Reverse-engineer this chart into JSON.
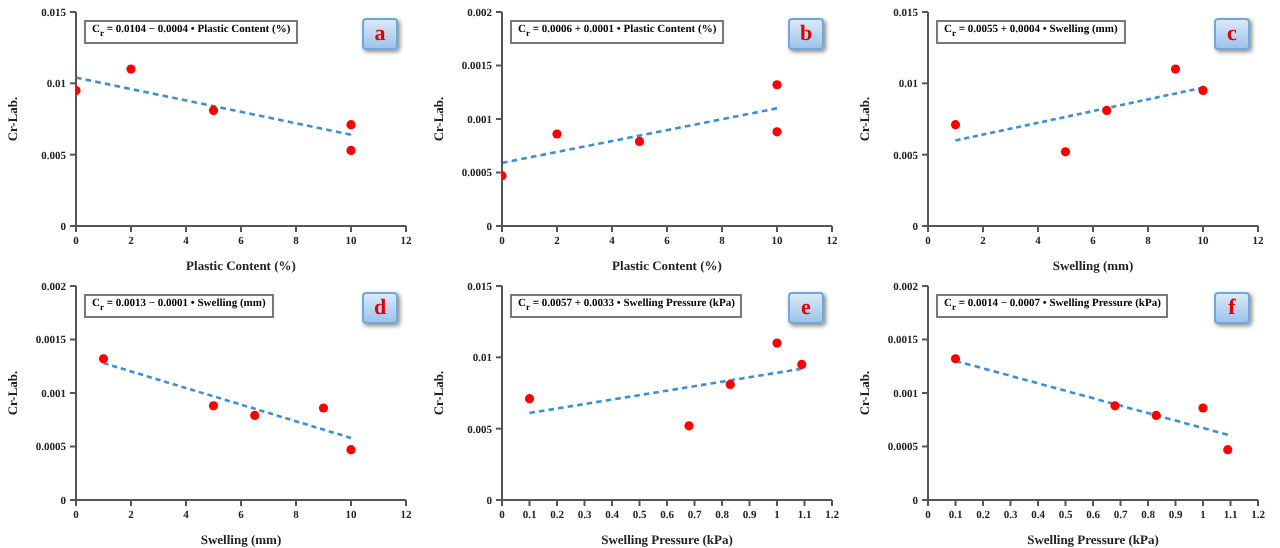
{
  "chart_data": [
    {
      "type": "scatter",
      "xlabel": "Plastic Content (%)",
      "ylabel": "Cr-Lab.",
      "annotations": [
        "C$_{r}$ = 0.0104 − 0.0004 • Plastic Content (%)",
        "a"
      ],
      "grid": false,
      "xlim": [
        0,
        12
      ],
      "xticks": [
        0,
        2,
        4,
        6,
        8,
        10,
        12
      ],
      "ylim": [
        0,
        0.015
      ],
      "yticks": [
        0,
        0.005,
        0.01,
        0.015
      ],
      "series": [
        {
          "color": "#ff0000",
          "marker": "circle",
          "x": [
            0,
            2,
            5,
            10,
            10
          ],
          "values": [
            0.0095,
            0.011,
            0.0081,
            0.0071,
            0.0053
          ]
        },
        {
          "type": "line",
          "color": "#3b8fd6",
          "marker": "none",
          "line_style": "dashed",
          "x": [
            0,
            10
          ],
          "values": [
            0.0104,
            0.0064
          ]
        }
      ]
    },
    {
      "type": "scatter",
      "xlabel": "Plastic Content (%)",
      "ylabel": "Cr-Lab.",
      "annotations": [
        "C$_{r}$ = 0.0006 + 0.0001 • Plastic Content (%)",
        "b"
      ],
      "grid": false,
      "xlim": [
        0,
        12
      ],
      "xticks": [
        0,
        2,
        4,
        6,
        8,
        10,
        12
      ],
      "ylim": [
        0,
        0.002
      ],
      "yticks": [
        0,
        0.0005,
        0.001,
        0.0015,
        0.002
      ],
      "series": [
        {
          "color": "#ff0000",
          "marker": "circle",
          "x": [
            0,
            2,
            5,
            10,
            10
          ],
          "values": [
            0.00047,
            0.00086,
            0.00079,
            0.00132,
            0.00088
          ]
        },
        {
          "type": "line",
          "color": "#3b8fd6",
          "marker": "none",
          "line_style": "dashed",
          "x": [
            0,
            10
          ],
          "values": [
            0.00059,
            0.0011
          ]
        }
      ]
    },
    {
      "type": "scatter",
      "xlabel": "Swelling (mm)",
      "ylabel": "Cr-Lab.",
      "annotations": [
        "C$_{r}$ = 0.0055 + 0.0004 • Swelling (mm)",
        "c"
      ],
      "grid": false,
      "xlim": [
        0,
        12
      ],
      "xticks": [
        0,
        2,
        4,
        6,
        8,
        10,
        12
      ],
      "ylim": [
        0,
        0.015
      ],
      "yticks": [
        0,
        0.005,
        0.01,
        0.015
      ],
      "series": [
        {
          "color": "#ff0000",
          "marker": "circle",
          "x": [
            1,
            5,
            6.5,
            9,
            10
          ],
          "values": [
            0.0071,
            0.0052,
            0.0081,
            0.011,
            0.0095
          ]
        },
        {
          "type": "line",
          "color": "#3b8fd6",
          "marker": "none",
          "line_style": "dashed",
          "x": [
            1,
            10
          ],
          "values": [
            0.006,
            0.0097
          ]
        }
      ]
    },
    {
      "type": "scatter",
      "xlabel": "Swelling (mm)",
      "ylabel": "Cr-Lab.",
      "annotations": [
        "C$_{r}$ = 0.0013 − 0.0001 • Swelling (mm)",
        "d"
      ],
      "grid": false,
      "xlim": [
        0,
        12
      ],
      "xticks": [
        0,
        2,
        4,
        6,
        8,
        10,
        12
      ],
      "ylim": [
        0,
        0.002
      ],
      "yticks": [
        0,
        0.0005,
        0.001,
        0.0015,
        0.002
      ],
      "series": [
        {
          "color": "#ff0000",
          "marker": "circle",
          "x": [
            1,
            5,
            6.5,
            9,
            10
          ],
          "values": [
            0.00132,
            0.00088,
            0.00079,
            0.00086,
            0.00047
          ]
        },
        {
          "type": "line",
          "color": "#3b8fd6",
          "marker": "none",
          "line_style": "dashed",
          "x": [
            1,
            10
          ],
          "values": [
            0.00128,
            0.00058
          ]
        }
      ]
    },
    {
      "type": "scatter",
      "xlabel": "Swelling Pressure (kPa)",
      "ylabel": "Cr-Lab.",
      "annotations": [
        "C$_{r}$ = 0.0057 + 0.0033 • Swelling Pressure (kPa)",
        "e"
      ],
      "grid": false,
      "xlim": [
        0,
        1.2
      ],
      "xticks": [
        0,
        0.1,
        0.2,
        0.3,
        0.4,
        0.5,
        0.6,
        0.7,
        0.8,
        0.9,
        1,
        1.1,
        1.2
      ],
      "ylim": [
        0,
        0.015
      ],
      "yticks": [
        0,
        0.005,
        0.01,
        0.015
      ],
      "series": [
        {
          "color": "#ff0000",
          "marker": "circle",
          "x": [
            0.1,
            0.68,
            0.83,
            1.0,
            1.09
          ],
          "values": [
            0.0071,
            0.0052,
            0.0081,
            0.011,
            0.0095
          ]
        },
        {
          "type": "line",
          "color": "#3b8fd6",
          "marker": "none",
          "line_style": "dashed",
          "x": [
            0.1,
            1.09
          ],
          "values": [
            0.0061,
            0.0092
          ]
        }
      ]
    },
    {
      "type": "scatter",
      "xlabel": "Swelling Pressure (kPa)",
      "ylabel": "Cr-Lab.",
      "annotations": [
        "C$_{r}$ = 0.0014 − 0.0007 • Swelling Pressure (kPa)",
        "f"
      ],
      "grid": false,
      "xlim": [
        0,
        1.2
      ],
      "xticks": [
        0,
        0.1,
        0.2,
        0.3,
        0.4,
        0.5,
        0.6,
        0.7,
        0.8,
        0.9,
        1,
        1.1,
        1.2
      ],
      "ylim": [
        0,
        0.002
      ],
      "yticks": [
        0,
        0.0005,
        0.001,
        0.0015,
        0.002
      ],
      "series": [
        {
          "color": "#ff0000",
          "marker": "circle",
          "x": [
            0.1,
            0.68,
            0.83,
            1.0,
            1.09
          ],
          "values": [
            0.00132,
            0.00088,
            0.00079,
            0.00086,
            0.00047
          ]
        },
        {
          "type": "line",
          "color": "#3b8fd6",
          "marker": "none",
          "line_style": "dashed",
          "x": [
            0.1,
            1.09
          ],
          "values": [
            0.0013,
            0.00061
          ]
        }
      ]
    }
  ]
}
